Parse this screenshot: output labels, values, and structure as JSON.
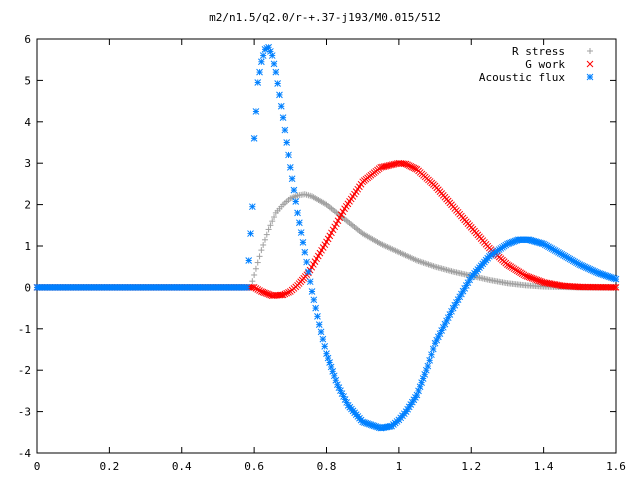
{
  "chart_data": {
    "type": "scatter",
    "title": "m2/n1.5/q2.0/r-+.37-j193/M0.015/512",
    "xlabel": "",
    "ylabel": "",
    "xlim": [
      0,
      1.6
    ],
    "ylim": [
      -4,
      6
    ],
    "xticks": [
      0,
      0.2,
      0.4,
      0.6,
      0.8,
      1,
      1.2,
      1.4,
      1.6
    ],
    "xtick_labels": [
      "0",
      "0.2",
      "0.4",
      "0.6",
      "0.8",
      "1",
      "1.2",
      "1.4",
      "1.6"
    ],
    "yticks": [
      -4,
      -3,
      -2,
      -1,
      0,
      1,
      2,
      3,
      4,
      5,
      6
    ],
    "ytick_labels": [
      "-4",
      "-3",
      "-2",
      "-1",
      "0",
      "1",
      "2",
      "3",
      "4",
      "5",
      "6"
    ],
    "grid": false,
    "legend_position": "top-right",
    "series": [
      {
        "name": "R stress",
        "marker": "plus",
        "color": "#a0a0a0",
        "x": [
          0,
          0.59,
          0.6,
          0.62,
          0.64,
          0.66,
          0.68,
          0.7,
          0.72,
          0.74,
          0.76,
          0.8,
          0.85,
          0.9,
          0.95,
          1.0,
          1.05,
          1.1,
          1.15,
          1.2,
          1.25,
          1.3,
          1.35,
          1.4,
          1.45,
          1.5,
          1.55,
          1.6
        ],
        "y": [
          0,
          0,
          0.3,
          0.9,
          1.4,
          1.8,
          2.0,
          2.15,
          2.22,
          2.25,
          2.2,
          2.0,
          1.65,
          1.3,
          1.05,
          0.85,
          0.65,
          0.5,
          0.38,
          0.28,
          0.18,
          0.1,
          0.05,
          0.02,
          0.01,
          0,
          0,
          0
        ]
      },
      {
        "name": "G work",
        "marker": "cross",
        "color": "#ff0000",
        "x": [
          0,
          0.59,
          0.6,
          0.62,
          0.65,
          0.68,
          0.7,
          0.72,
          0.75,
          0.8,
          0.85,
          0.9,
          0.95,
          1.0,
          1.02,
          1.05,
          1.1,
          1.15,
          1.2,
          1.25,
          1.3,
          1.35,
          1.4,
          1.45,
          1.5,
          1.6
        ],
        "y": [
          0,
          0,
          0,
          -0.1,
          -0.2,
          -0.18,
          -0.1,
          0.05,
          0.35,
          1.1,
          1.9,
          2.55,
          2.9,
          3.0,
          2.98,
          2.85,
          2.45,
          1.95,
          1.45,
          0.95,
          0.55,
          0.28,
          0.12,
          0.04,
          0.01,
          0
        ]
      },
      {
        "name": "Acoustic flux",
        "marker": "star",
        "color": "#0080ff",
        "x": [
          0,
          0.58,
          0.595,
          0.6,
          0.605,
          0.61,
          0.62,
          0.63,
          0.64,
          0.65,
          0.66,
          0.68,
          0.7,
          0.72,
          0.74,
          0.76,
          0.78,
          0.8,
          0.83,
          0.86,
          0.9,
          0.95,
          0.98,
          1.0,
          1.02,
          1.05,
          1.08,
          1.1,
          1.15,
          1.2,
          1.25,
          1.3,
          1.33,
          1.36,
          1.4,
          1.45,
          1.5,
          1.55,
          1.6
        ],
        "y": [
          0,
          0,
          1.95,
          3.6,
          4.25,
          4.95,
          5.45,
          5.75,
          5.8,
          5.6,
          5.2,
          4.1,
          2.9,
          1.8,
          0.85,
          -0.1,
          -0.9,
          -1.6,
          -2.35,
          -2.85,
          -3.25,
          -3.4,
          -3.35,
          -3.2,
          -3.0,
          -2.6,
          -1.9,
          -1.35,
          -0.5,
          0.25,
          0.75,
          1.05,
          1.15,
          1.15,
          1.05,
          0.8,
          0.55,
          0.35,
          0.2
        ]
      }
    ]
  }
}
